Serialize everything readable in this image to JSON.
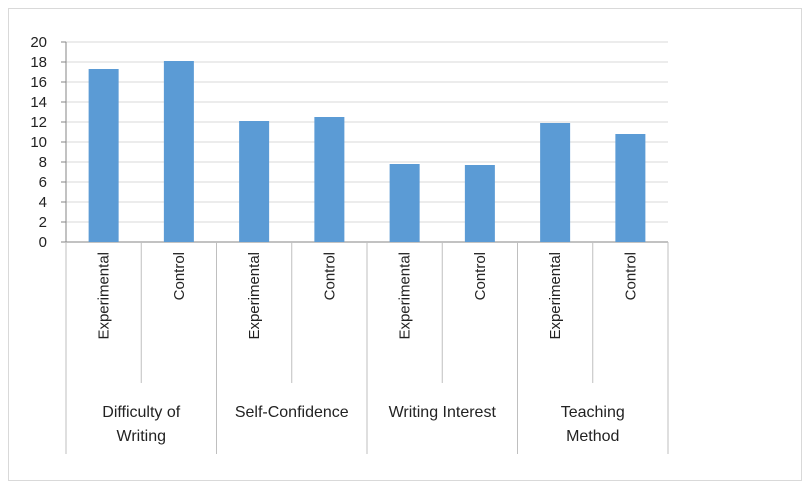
{
  "chart_data": {
    "type": "bar",
    "title": "",
    "xlabel": "",
    "ylabel": "",
    "ylim": [
      0,
      20
    ],
    "yticks": [
      0,
      2,
      4,
      6,
      8,
      10,
      12,
      14,
      16,
      18,
      20
    ],
    "grid": true,
    "legend": "none",
    "bar_color": "#5b9bd5",
    "groups": [
      {
        "name_lines": [
          "Difficulty of",
          "Writing"
        ],
        "bars": [
          {
            "label": "Experimental",
            "value": 17.3
          },
          {
            "label": "Control",
            "value": 18.1
          }
        ]
      },
      {
        "name_lines": [
          "Self-Confidence"
        ],
        "bars": [
          {
            "label": "Experimental",
            "value": 12.1
          },
          {
            "label": "Control",
            "value": 12.5
          }
        ]
      },
      {
        "name_lines": [
          "Writing Interest"
        ],
        "bars": [
          {
            "label": "Experimental",
            "value": 7.8
          },
          {
            "label": "Control",
            "value": 7.7
          }
        ]
      },
      {
        "name_lines": [
          "Teaching",
          "Method"
        ],
        "bars": [
          {
            "label": "Experimental",
            "value": 11.9
          },
          {
            "label": "Control",
            "value": 10.8
          }
        ]
      }
    ]
  }
}
